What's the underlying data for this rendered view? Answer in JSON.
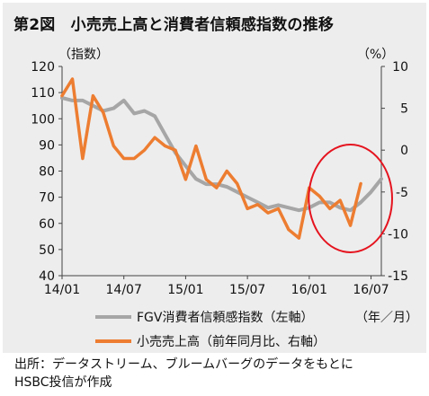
{
  "chart_data": {
    "type": "line",
    "title": "第2図　小売売上高と消費者信頼感指数の推移",
    "left_axis": {
      "label": "（指数）",
      "min": 40,
      "max": 120,
      "ticks": [
        40,
        50,
        60,
        70,
        80,
        90,
        100,
        110,
        120
      ]
    },
    "right_axis": {
      "label": "（%）",
      "min": -15,
      "max": 10,
      "ticks": [
        -15,
        -10,
        -5,
        0,
        5,
        10
      ]
    },
    "x_axis": {
      "unit_label": "（年／月）",
      "tick_labels": [
        "14/01",
        "14/07",
        "15/01",
        "15/07",
        "16/01",
        "16/07"
      ],
      "tick_indices": [
        0,
        6,
        12,
        18,
        24,
        30
      ]
    },
    "grid": false,
    "legend_position": "bottom-center",
    "series": [
      {
        "name": "FGV消費者信頼感指数（左軸）",
        "axis": "left",
        "color": "#a6a6a6",
        "values": [
          108,
          107,
          107,
          105,
          103,
          104,
          107,
          102,
          103,
          101,
          94,
          87,
          82,
          77,
          75,
          75,
          74,
          72,
          70,
          68,
          66,
          67,
          66,
          65,
          66,
          68,
          68,
          66,
          65,
          68,
          72,
          77
        ]
      },
      {
        "name": "小売売上高（前年同月比、右軸）",
        "axis": "right",
        "color": "#ed7d31",
        "values": [
          6.5,
          8.5,
          -1.0,
          6.5,
          4.5,
          0.5,
          -1.0,
          -1.0,
          0.0,
          1.5,
          0.5,
          0.0,
          -3.5,
          0.5,
          -3.5,
          -4.5,
          -2.5,
          -4.0,
          -7.0,
          -6.5,
          -7.5,
          -7.0,
          -9.5,
          -10.5,
          -4.5,
          -5.5,
          -7.0,
          -6.0,
          -9.0,
          -4.0
        ]
      }
    ],
    "annotation": {
      "type": "red-ellipse",
      "color": "#e5141f",
      "description_x_range": [
        25,
        31
      ]
    }
  },
  "source": {
    "line1": "出所：データストリーム、ブルームバーグのデータをもとに",
    "line2": "HSBC投信が作成"
  }
}
